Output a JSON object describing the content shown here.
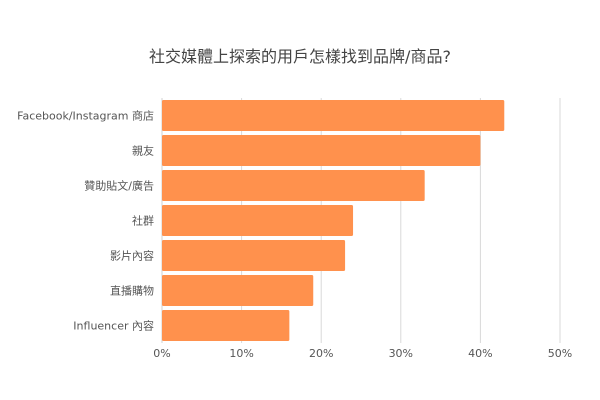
{
  "chart_data": {
    "type": "bar",
    "orientation": "horizontal",
    "title": "社交媒體上探索的用戶怎樣找到品牌/商品?",
    "categories": [
      "Facebook/Instagram 商店",
      "親友",
      "贊助貼文/廣告",
      "社群",
      "影片內容",
      "直播購物",
      "Influencer 內容"
    ],
    "values": [
      43,
      40,
      33,
      24,
      23,
      19,
      16
    ],
    "x_ticks": [
      "0%",
      "10%",
      "20%",
      "30%",
      "40%",
      "50%"
    ],
    "xlim": [
      0,
      50
    ],
    "value_unit": "%",
    "grid": true,
    "bar_color": "#ff914d",
    "grid_color": "#d9d9d9",
    "text_color": "#555555",
    "title_color": "#444444"
  }
}
